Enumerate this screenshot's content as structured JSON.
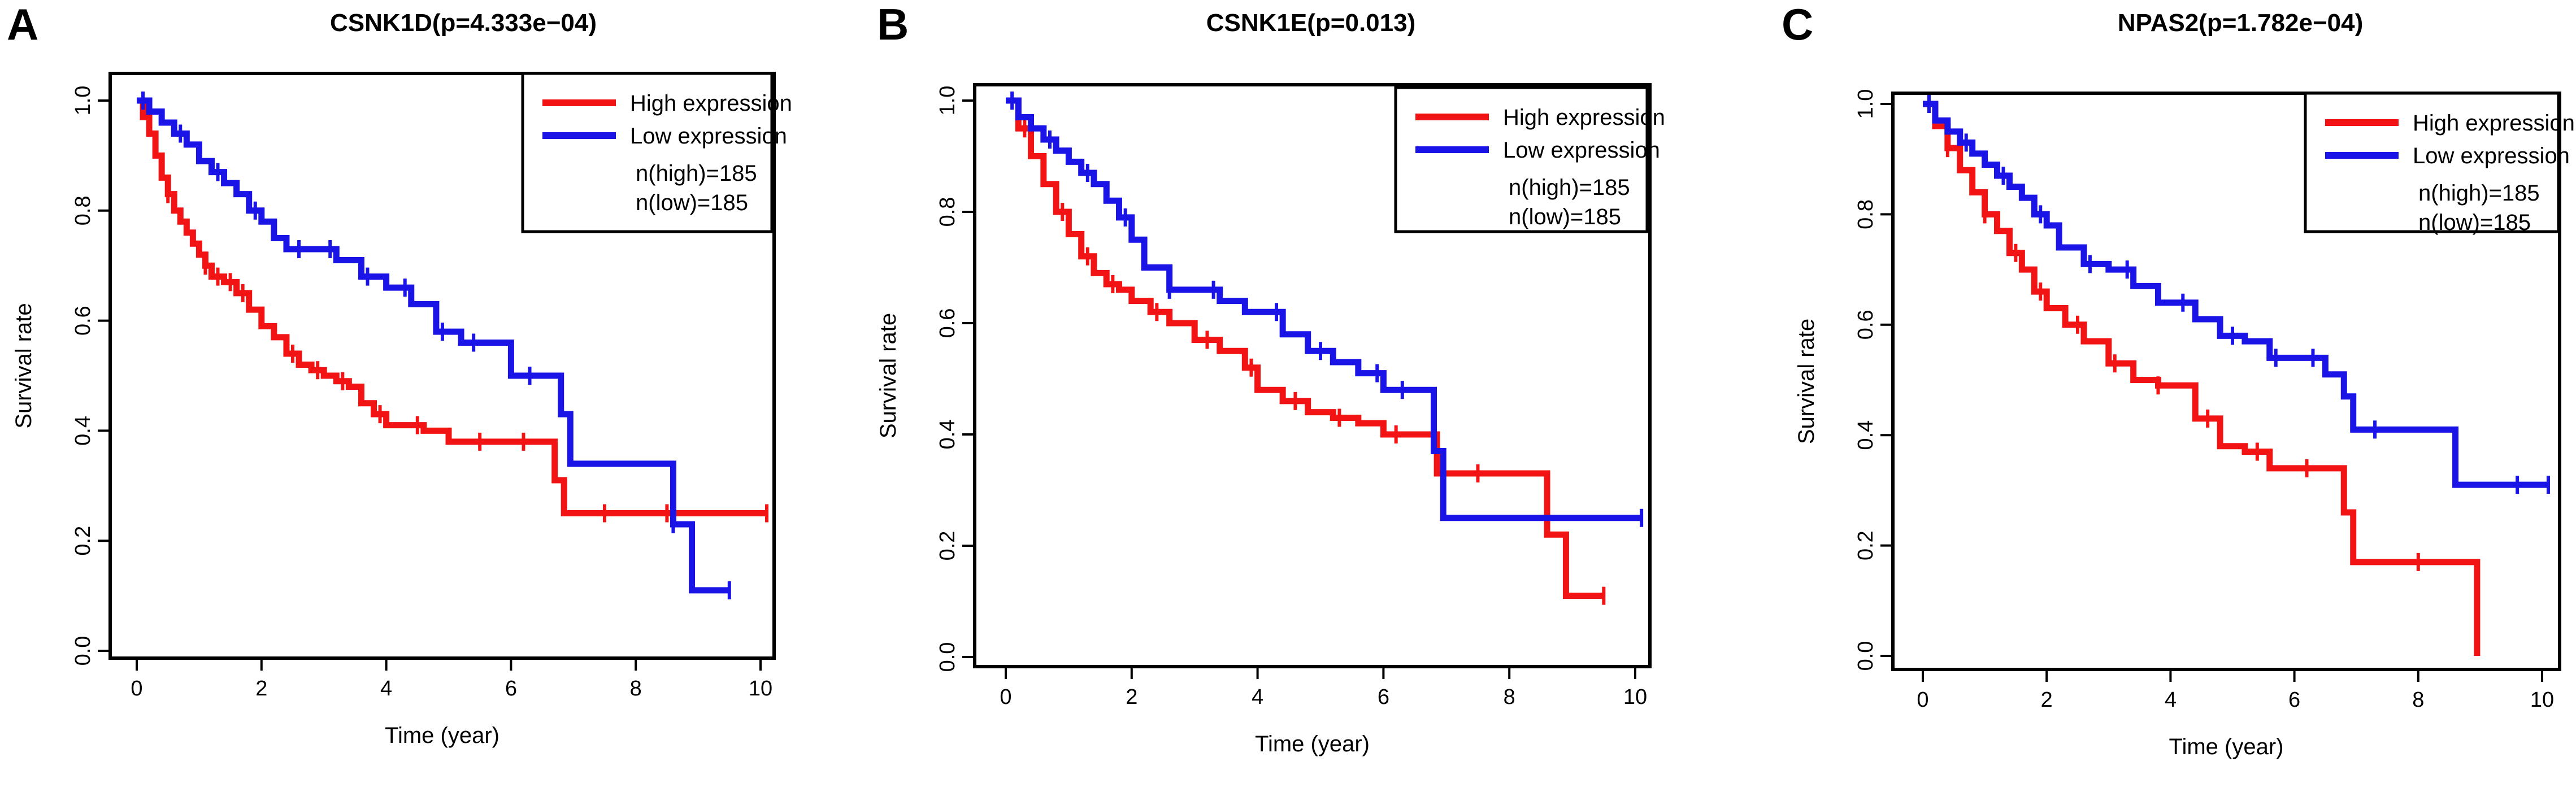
{
  "figure": {
    "colors": {
      "high": "#f21414",
      "low": "#1a14e6",
      "axis": "#000000"
    }
  },
  "chart_data": [
    {
      "panel_label": "A",
      "type": "line",
      "title": "CSNK1D(p=4.333e−04)",
      "xlabel": "Time (year)",
      "ylabel": "Survival rate",
      "xlim": [
        0,
        10
      ],
      "ylim": [
        0,
        1
      ],
      "xticks": [
        0,
        2,
        4,
        6,
        8,
        10
      ],
      "yticks": [
        0.0,
        0.2,
        0.4,
        0.6,
        0.8,
        1.0
      ],
      "ytick_labels": [
        "0.0",
        "0.2",
        "0.4",
        "0.6",
        "0.8",
        "1.0"
      ],
      "legend": {
        "position": "top-right",
        "entries": [
          "High expression",
          "Low expression"
        ],
        "notes": [
          "n(high)=185",
          "n(low)=185"
        ]
      },
      "series": [
        {
          "name": "High expression",
          "color": "#f21414",
          "x": [
            0,
            0.1,
            0.2,
            0.3,
            0.4,
            0.5,
            0.6,
            0.7,
            0.8,
            0.9,
            1.0,
            1.1,
            1.2,
            1.4,
            1.6,
            1.8,
            2.0,
            2.2,
            2.4,
            2.6,
            2.8,
            3.0,
            3.2,
            3.4,
            3.6,
            3.8,
            4.0,
            4.3,
            4.6,
            5.0,
            5.5,
            6.0,
            6.7,
            6.85,
            7.5,
            8.5,
            10.1
          ],
          "y": [
            1.0,
            0.97,
            0.94,
            0.9,
            0.86,
            0.83,
            0.8,
            0.78,
            0.76,
            0.74,
            0.72,
            0.7,
            0.68,
            0.67,
            0.65,
            0.62,
            0.59,
            0.57,
            0.54,
            0.52,
            0.51,
            0.5,
            0.49,
            0.48,
            0.45,
            0.43,
            0.41,
            0.41,
            0.4,
            0.38,
            0.38,
            0.38,
            0.31,
            0.25,
            0.25,
            0.25,
            0.25
          ],
          "censor_x": [
            0.5,
            1.1,
            1.3,
            1.5,
            1.7,
            2.5,
            2.9,
            3.3,
            3.9,
            4.5,
            5.5,
            6.2,
            7.5,
            8.5,
            10.1
          ]
        },
        {
          "name": "Low expression",
          "color": "#1a14e6",
          "x": [
            0,
            0.2,
            0.4,
            0.6,
            0.8,
            1.0,
            1.2,
            1.4,
            1.6,
            1.8,
            2.0,
            2.2,
            2.4,
            2.8,
            3.2,
            3.6,
            4.0,
            4.4,
            4.8,
            5.2,
            5.6,
            6.0,
            6.5,
            6.8,
            6.95,
            8.6,
            8.9,
            9.5
          ],
          "y": [
            1.0,
            0.98,
            0.96,
            0.94,
            0.92,
            0.89,
            0.87,
            0.85,
            0.83,
            0.8,
            0.78,
            0.75,
            0.73,
            0.73,
            0.71,
            0.68,
            0.66,
            0.63,
            0.58,
            0.56,
            0.56,
            0.5,
            0.5,
            0.43,
            0.34,
            0.23,
            0.11,
            0.11
          ],
          "censor_x": [
            0.1,
            0.7,
            1.3,
            1.9,
            2.6,
            3.1,
            3.7,
            4.3,
            4.9,
            5.4,
            6.3,
            8.6,
            9.5
          ]
        }
      ]
    },
    {
      "panel_label": "B",
      "type": "line",
      "title": "CSNK1E(p=0.013)",
      "xlabel": "Time (year)",
      "ylabel": "Survival rate",
      "xlim": [
        0,
        10
      ],
      "ylim": [
        0,
        1
      ],
      "xticks": [
        0,
        2,
        4,
        6,
        8,
        10
      ],
      "yticks": [
        0.0,
        0.2,
        0.4,
        0.6,
        0.8,
        1.0
      ],
      "ytick_labels": [
        "0.0",
        "0.2",
        "0.4",
        "0.6",
        "0.8",
        "1.0"
      ],
      "legend": {
        "position": "top-right",
        "entries": [
          "High expression",
          "Low expression"
        ],
        "notes": [
          "n(high)=185",
          "n(low)=185"
        ]
      },
      "series": [
        {
          "name": "High expression",
          "color": "#f21414",
          "x": [
            0,
            0.2,
            0.4,
            0.6,
            0.8,
            1.0,
            1.2,
            1.4,
            1.6,
            1.8,
            2.0,
            2.3,
            2.6,
            3.0,
            3.4,
            3.8,
            4.0,
            4.4,
            4.8,
            5.2,
            5.6,
            6.0,
            6.5,
            6.85,
            7.5,
            8.5,
            8.6,
            8.9,
            9.5
          ],
          "y": [
            1.0,
            0.95,
            0.9,
            0.85,
            0.8,
            0.76,
            0.72,
            0.69,
            0.67,
            0.66,
            0.64,
            0.62,
            0.6,
            0.57,
            0.55,
            0.52,
            0.48,
            0.46,
            0.44,
            0.43,
            0.42,
            0.4,
            0.4,
            0.33,
            0.33,
            0.33,
            0.22,
            0.11,
            0.11
          ],
          "censor_x": [
            0.3,
            0.9,
            1.3,
            1.7,
            2.4,
            3.2,
            3.9,
            4.6,
            5.3,
            6.2,
            7.5,
            9.5
          ]
        },
        {
          "name": "Low expression",
          "color": "#1a14e6",
          "x": [
            0,
            0.2,
            0.4,
            0.6,
            0.8,
            1.0,
            1.2,
            1.4,
            1.6,
            1.8,
            2.0,
            2.2,
            2.6,
            3.0,
            3.4,
            3.8,
            4.0,
            4.4,
            4.8,
            5.2,
            5.6,
            6.0,
            6.5,
            6.8,
            6.95,
            10.1
          ],
          "y": [
            1.0,
            0.97,
            0.95,
            0.93,
            0.91,
            0.89,
            0.87,
            0.85,
            0.82,
            0.79,
            0.75,
            0.7,
            0.66,
            0.66,
            0.64,
            0.62,
            0.62,
            0.58,
            0.55,
            0.53,
            0.51,
            0.48,
            0.48,
            0.37,
            0.25,
            0.25
          ],
          "censor_x": [
            0.1,
            0.7,
            1.3,
            1.9,
            2.6,
            3.3,
            4.3,
            5.0,
            5.9,
            6.3,
            10.1
          ]
        }
      ]
    },
    {
      "panel_label": "C",
      "type": "line",
      "title": "NPAS2(p=1.782e−04)",
      "xlabel": "Time (year)",
      "ylabel": "Survival rate",
      "xlim": [
        0,
        10
      ],
      "ylim": [
        0,
        1
      ],
      "xticks": [
        0,
        2,
        4,
        6,
        8,
        10
      ],
      "yticks": [
        0.0,
        0.2,
        0.4,
        0.6,
        0.8,
        1.0
      ],
      "ytick_labels": [
        "0.0",
        "0.2",
        "0.4",
        "0.6",
        "0.8",
        "1.0"
      ],
      "legend": {
        "position": "top-right",
        "entries": [
          "High expression",
          "Low expression"
        ],
        "notes": [
          "n(high)=185",
          "n(low)=185"
        ]
      },
      "series": [
        {
          "name": "High expression",
          "color": "#f21414",
          "x": [
            0,
            0.2,
            0.4,
            0.6,
            0.8,
            1.0,
            1.2,
            1.4,
            1.6,
            1.8,
            2.0,
            2.3,
            2.6,
            3.0,
            3.4,
            3.8,
            4.0,
            4.4,
            4.8,
            5.2,
            5.6,
            6.0,
            6.5,
            6.8,
            6.95,
            8.9,
            8.95
          ],
          "y": [
            1.0,
            0.96,
            0.92,
            0.88,
            0.84,
            0.8,
            0.77,
            0.73,
            0.7,
            0.66,
            0.63,
            0.6,
            0.57,
            0.53,
            0.5,
            0.49,
            0.49,
            0.43,
            0.38,
            0.37,
            0.34,
            0.34,
            0.34,
            0.26,
            0.17,
            0.17,
            0.0
          ],
          "censor_x": [
            0.4,
            1.0,
            1.5,
            1.9,
            2.5,
            3.1,
            3.8,
            4.6,
            5.4,
            6.2,
            8.0
          ]
        },
        {
          "name": "Low expression",
          "color": "#1a14e6",
          "x": [
            0,
            0.2,
            0.4,
            0.6,
            0.8,
            1.0,
            1.2,
            1.4,
            1.6,
            1.8,
            2.0,
            2.2,
            2.6,
            3.0,
            3.4,
            3.8,
            4.0,
            4.4,
            4.8,
            5.2,
            5.6,
            6.0,
            6.5,
            6.8,
            6.95,
            8.6,
            10.1
          ],
          "y": [
            1.0,
            0.97,
            0.95,
            0.93,
            0.91,
            0.89,
            0.87,
            0.85,
            0.83,
            0.8,
            0.78,
            0.74,
            0.71,
            0.7,
            0.67,
            0.64,
            0.64,
            0.61,
            0.58,
            0.57,
            0.54,
            0.54,
            0.51,
            0.47,
            0.41,
            0.31,
            0.31
          ],
          "censor_x": [
            0.1,
            0.7,
            1.3,
            1.9,
            2.7,
            3.3,
            4.2,
            5.0,
            5.7,
            6.3,
            7.3,
            9.6,
            10.1
          ]
        }
      ]
    }
  ]
}
